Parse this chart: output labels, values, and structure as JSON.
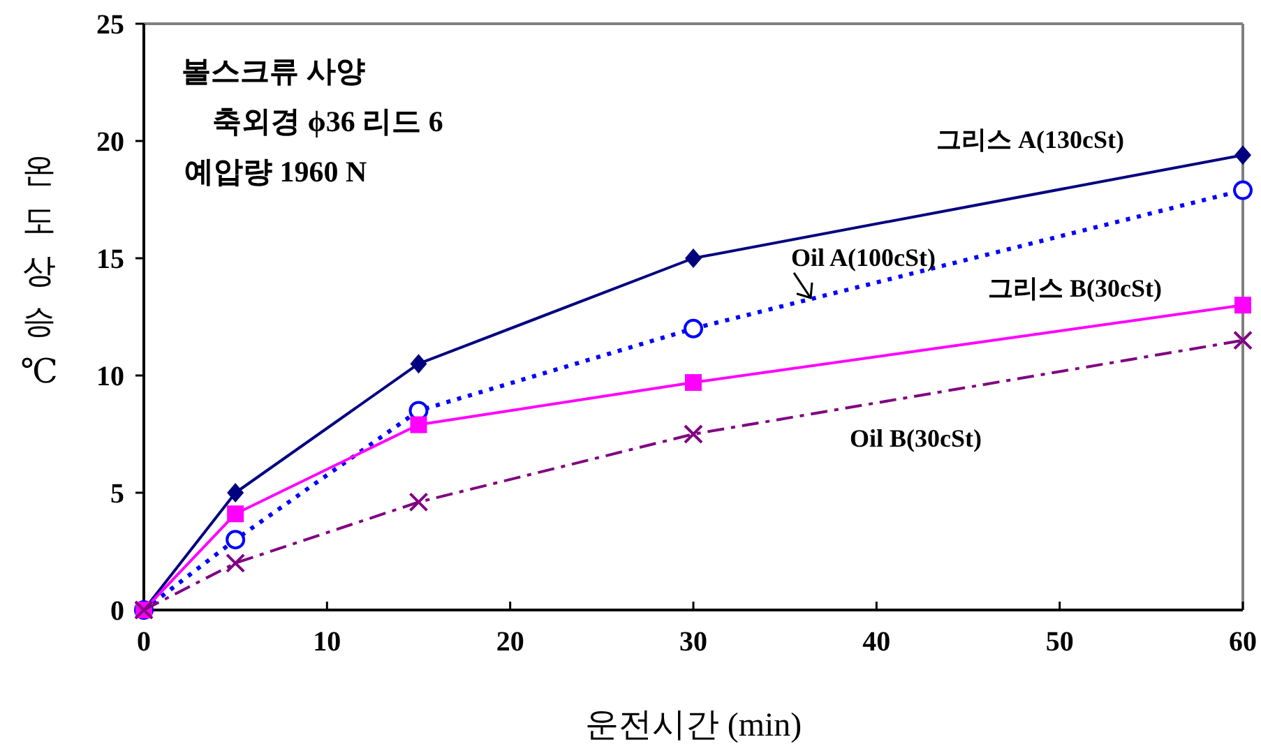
{
  "chart_data": {
    "type": "line",
    "xlabel": "운전시간 (min)",
    "ylabel": "온도상승℃",
    "x": [
      0,
      5,
      15,
      30,
      60
    ],
    "xlim": [
      0,
      60
    ],
    "xticks": [
      0,
      10,
      20,
      30,
      40,
      50,
      60
    ],
    "ylim": [
      0,
      25
    ],
    "yticks": [
      0,
      5,
      10,
      15,
      20,
      25
    ],
    "series": [
      {
        "name": "그리스 A(130cSt)",
        "color": "#000080",
        "marker": "diamond",
        "line_style": "solid",
        "values": [
          0,
          5,
          10.5,
          15,
          19.4
        ]
      },
      {
        "name": "Oil A(100cSt)",
        "color": "#0000ff",
        "marker": "circle",
        "line_style": "dotted",
        "values": [
          0,
          3,
          8.5,
          12,
          17.9
        ]
      },
      {
        "name": "그리스 B(30cSt)",
        "color": "#ff00ff",
        "marker": "square",
        "line_style": "solid",
        "values": [
          0,
          4.1,
          7.9,
          9.7,
          13
        ]
      },
      {
        "name": "Oil B(30cSt)",
        "color": "#800080",
        "marker": "cross",
        "line_style": "dashdot",
        "values": [
          0,
          2,
          4.6,
          7.5,
          11.5
        ]
      }
    ],
    "annotations": [
      "볼스크류 사양",
      "축외경 ϕ36 리드 6",
      "예압량 1960 N"
    ],
    "grid": false
  }
}
